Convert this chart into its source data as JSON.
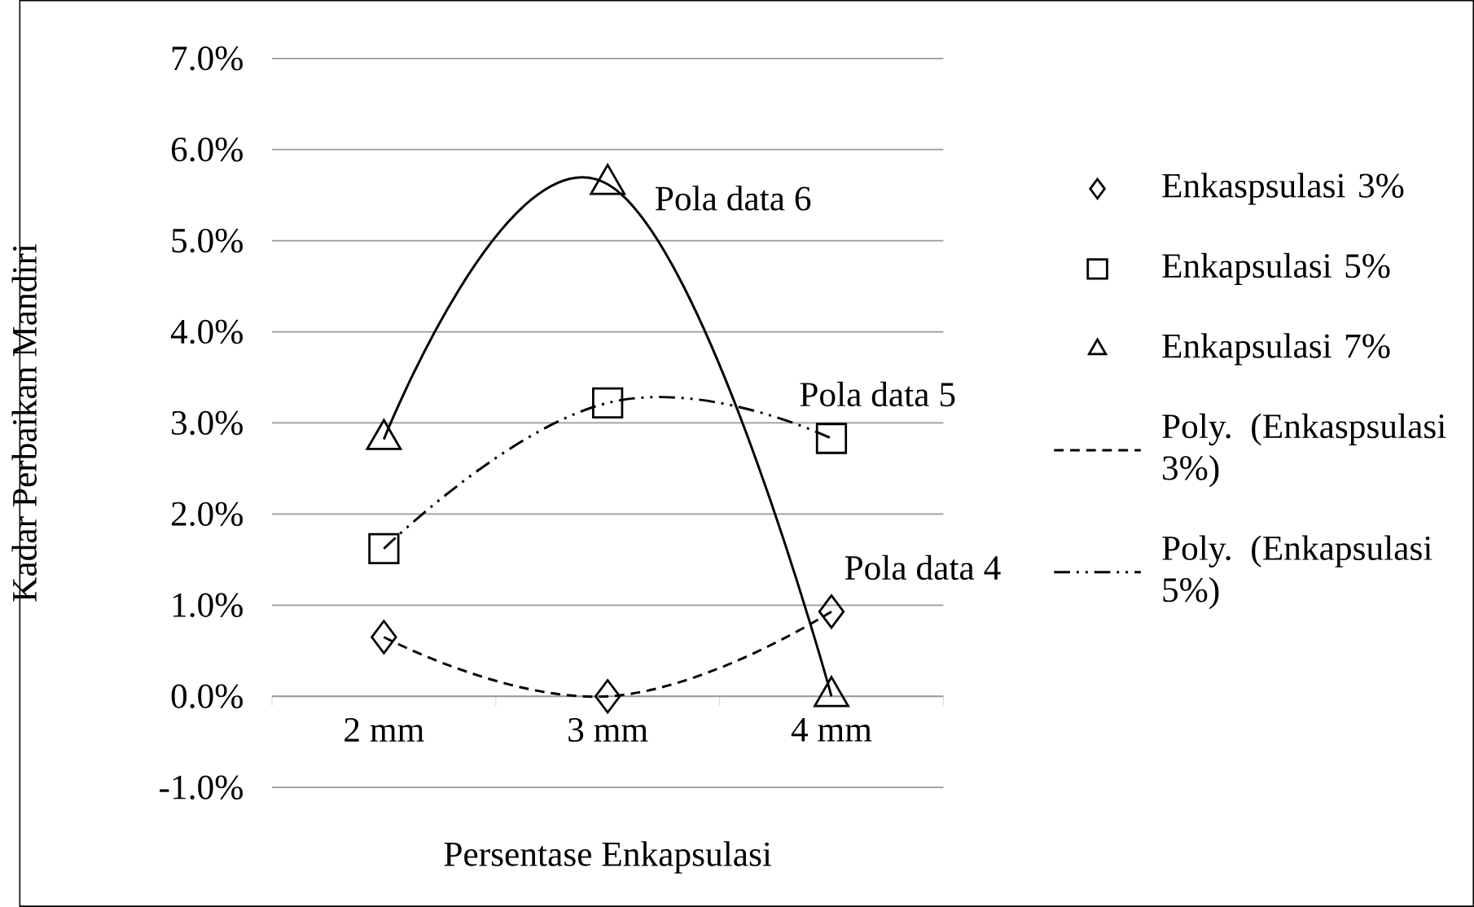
{
  "chart_data": {
    "type": "scatter",
    "xlabel": "Persentase Enkapsulasi",
    "ylabel": "Kadar Perbaikan Mandiri",
    "categories": [
      "2 mm",
      "3 mm",
      "4 mm"
    ],
    "ylim": [
      -1,
      7
    ],
    "yticks": [
      {
        "value": -1,
        "label": "-1.0%"
      },
      {
        "value": 0,
        "label": "0.0%"
      },
      {
        "value": 1,
        "label": "1.0%"
      },
      {
        "value": 2,
        "label": "2.0%"
      },
      {
        "value": 3,
        "label": "3.0%"
      },
      {
        "value": 4,
        "label": "4.0%"
      },
      {
        "value": 5,
        "label": "5.0%"
      },
      {
        "value": 6,
        "label": "6.0%"
      },
      {
        "value": 7,
        "label": "7.0%"
      }
    ],
    "grid": "y",
    "legend": "right",
    "series": [
      {
        "name": "Enkaspsulasi 3%",
        "marker": "diamond",
        "color": "#000000",
        "values": [
          0.65,
          0.0,
          0.93
        ]
      },
      {
        "name": "Enkapsulasi 5%",
        "marker": "square",
        "color": "#000000",
        "values": [
          1.62,
          3.22,
          2.83
        ]
      },
      {
        "name": "Enkapsulasi 7%",
        "marker": "triangle",
        "color": "#000000",
        "values": [
          2.82,
          5.62,
          0.0
        ]
      },
      {
        "name": "Poly. (Enkaspsulasi 3%)",
        "type": "line",
        "line_style": "dashed",
        "color": "#000000",
        "values": [
          0.65,
          0.0,
          0.93
        ]
      },
      {
        "name": "Poly. (Enkapsulasi 5%)",
        "type": "line",
        "line_style": "dashdotdotted",
        "color": "#000000",
        "values": [
          1.62,
          3.22,
          2.83
        ]
      },
      {
        "type": "line",
        "line_style": "solid",
        "color": "#000000",
        "values": [
          2.82,
          5.62,
          0.0
        ]
      }
    ],
    "annotations": [
      "Pola data 6",
      "Pola data 5",
      "Pola data 4"
    ]
  }
}
